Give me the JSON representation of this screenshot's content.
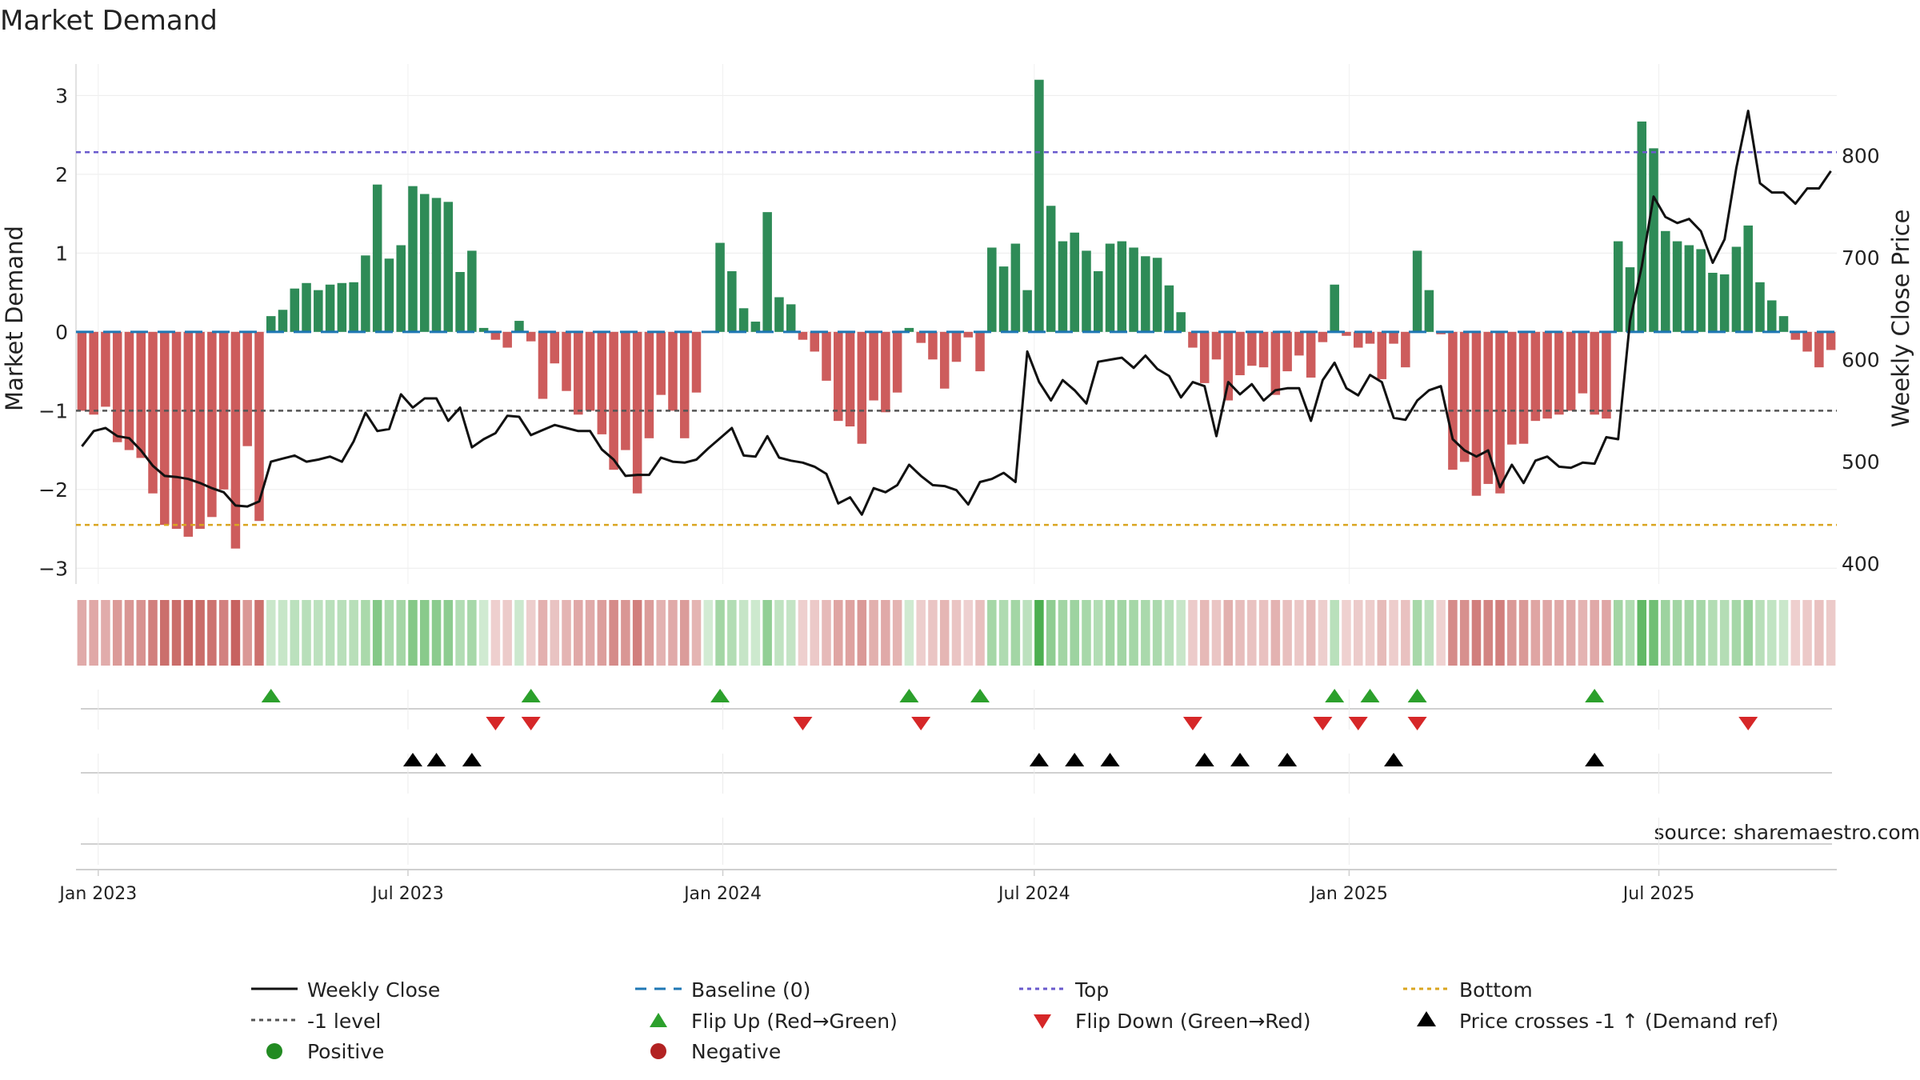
{
  "chart_data": {
    "type": "bar",
    "title": "Market Demand",
    "ylabel_left": "Market Demand",
    "ylabel_right": "Weekly Close Price",
    "ylim_left": [
      -3.2,
      3.4
    ],
    "ylim_right": [
      380,
      890
    ],
    "yticks_left": [
      3,
      2,
      1,
      0,
      -1,
      -2,
      -3
    ],
    "yticks_left_labels": [
      "3",
      "2",
      "1",
      "0",
      "−1",
      "−2",
      "−3"
    ],
    "yticks_right": [
      800,
      700,
      600,
      500,
      400
    ],
    "x_start": "2022-12-19",
    "x_end": "2025-10-13",
    "xtick_dates": [
      "2023-01-01",
      "2023-07-01",
      "2024-01-01",
      "2024-07-01",
      "2025-01-01",
      "2025-07-01"
    ],
    "xtick_labels": [
      "Jan 2023",
      "Jul 2023",
      "Jan 2024",
      "Jul 2024",
      "Jan 2025",
      "Jul 2025"
    ],
    "reference_lines": {
      "top": 2.28,
      "bottom": -2.45,
      "minus_one": -1.0,
      "baseline": 0
    },
    "colors": {
      "positive": "#2e8b57",
      "negative": "#cd5c5c",
      "weekly_close": "#111111",
      "baseline": "#1f77b4",
      "top": "#6a5acd",
      "bottom": "#daa520",
      "minus_one": "#555555",
      "flip_up": "#2ca02c",
      "flip_down": "#d62728",
      "cross": "#000000",
      "positive_dot": "#228b22",
      "negative_dot": "#b22222"
    },
    "demand": [
      -1.0,
      -1.05,
      -0.95,
      -1.4,
      -1.5,
      -1.6,
      -2.05,
      -2.45,
      -2.5,
      -2.6,
      -2.5,
      -2.35,
      -2.0,
      -2.75,
      -1.45,
      -2.4,
      0.2,
      0.28,
      0.55,
      0.62,
      0.53,
      0.6,
      0.62,
      0.63,
      0.97,
      1.87,
      0.93,
      1.1,
      1.85,
      1.75,
      1.7,
      1.65,
      0.76,
      1.03,
      0.05,
      -0.1,
      -0.2,
      0.14,
      -0.12,
      -0.85,
      -0.4,
      -0.75,
      -1.05,
      -1.0,
      -1.3,
      -1.75,
      -1.5,
      -2.05,
      -1.35,
      -0.8,
      -1.0,
      -1.35,
      -0.77,
      0,
      1.13,
      0.77,
      0.3,
      0.13,
      1.52,
      0.44,
      0.35,
      -0.1,
      -0.25,
      -0.62,
      -1.13,
      -1.2,
      -1.42,
      -0.87,
      -1.02,
      -0.77,
      0.05,
      -0.14,
      -0.35,
      -0.72,
      -0.38,
      -0.07,
      -0.5,
      1.07,
      0.83,
      1.12,
      0.53,
      3.2,
      1.6,
      1.15,
      1.26,
      1.03,
      0.77,
      1.12,
      1.15,
      1.07,
      0.96,
      0.94,
      0.59,
      0.25,
      -0.2,
      -0.65,
      -0.35,
      -0.87,
      -0.55,
      -0.43,
      -0.45,
      -0.8,
      -0.5,
      -0.3,
      -0.58,
      -0.13,
      0.6,
      -0.05,
      -0.2,
      -0.15,
      -0.6,
      -0.15,
      -0.45,
      1.03,
      0.53,
      -0.03,
      -1.75,
      -1.65,
      -2.08,
      -1.93,
      -2.05,
      -1.43,
      -1.42,
      -1.13,
      -1.1,
      -1.05,
      -1.0,
      -0.78,
      -1.05,
      -1.1,
      1.15,
      0.82,
      2.67,
      2.33,
      1.28,
      1.15,
      1.1,
      1.05,
      0.75,
      0.73,
      1.08,
      1.35,
      0.63,
      0.4,
      0.2,
      -0.1,
      -0.25,
      -0.45,
      -0.23
    ],
    "weekly_close": [
      515,
      530,
      533,
      525,
      523,
      511,
      496,
      486,
      485,
      483,
      479,
      474,
      470,
      457,
      456,
      461,
      500,
      503,
      506,
      500,
      502,
      505,
      500,
      520,
      548,
      530,
      532,
      566,
      553,
      562,
      562,
      540,
      553,
      514,
      522,
      528,
      545,
      544,
      526,
      531,
      536,
      533,
      530,
      530,
      512,
      502,
      486,
      487,
      487,
      504,
      500,
      499,
      502,
      513,
      523,
      533,
      506,
      505,
      525,
      504,
      501,
      499,
      495,
      488,
      459,
      465,
      448,
      474,
      470,
      477,
      497,
      486,
      477,
      476,
      472,
      458,
      480,
      483,
      489,
      480,
      608,
      578,
      560,
      580,
      570,
      557,
      598,
      600,
      602,
      592,
      604,
      591,
      584,
      563,
      578,
      574,
      525,
      578,
      566,
      576,
      560,
      570,
      572,
      572,
      540,
      580,
      597,
      572,
      565,
      585,
      578,
      543,
      541,
      560,
      570,
      574,
      522,
      511,
      505,
      511,
      475,
      497,
      479,
      501,
      505,
      495,
      494,
      499,
      498,
      524,
      522,
      638,
      692,
      760,
      740,
      734,
      738,
      726,
      695,
      718,
      788,
      844,
      773,
      764,
      764,
      753,
      768,
      768,
      785
    ]
  },
  "markers": {
    "flip_up_weeks": [
      16,
      38,
      54,
      70,
      76,
      106,
      109,
      113,
      128
    ],
    "flip_down_weeks": [
      35,
      38,
      61,
      71,
      94,
      105,
      108,
      113,
      141
    ],
    "cross_weeks": [
      28,
      30,
      33,
      81,
      84,
      87,
      95,
      98,
      102,
      111,
      128
    ]
  },
  "legend": {
    "weekly_close": "Weekly Close",
    "baseline": "Baseline (0)",
    "top": "Top",
    "bottom": "Bottom",
    "minus_one": "-1 level",
    "flip_up": "Flip Up (Red→Green)",
    "flip_down": "Flip Down (Green→Red)",
    "cross": "Price crosses -1 ↑ (Demand ref)",
    "positive": "Positive",
    "negative": "Negative"
  },
  "source": "source: sharemaestro.com"
}
